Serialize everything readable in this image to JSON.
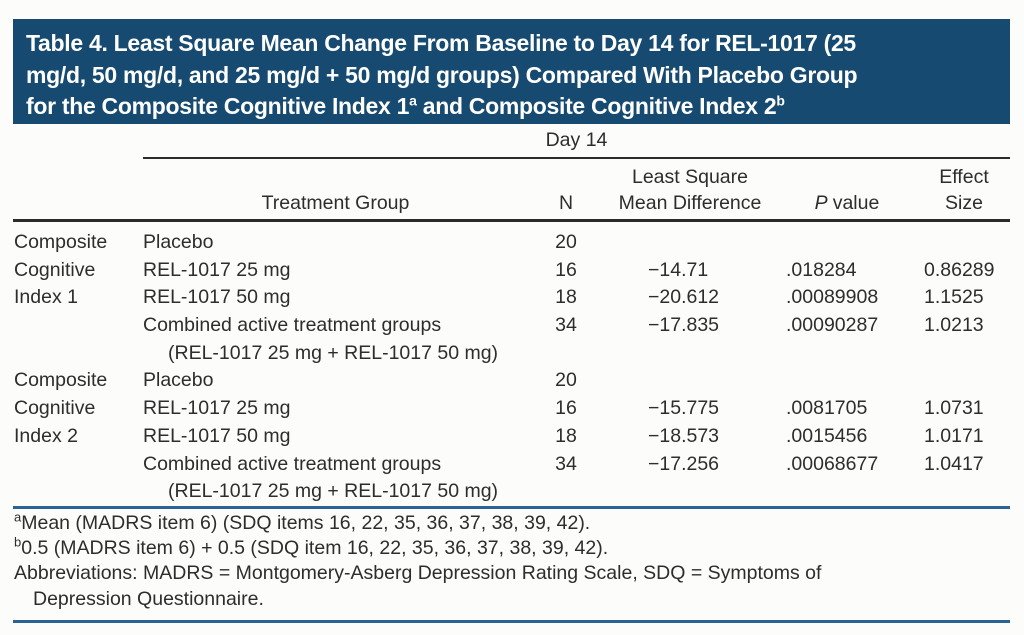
{
  "colors": {
    "banner_bg": "#164a70",
    "banner_text": "#ffffff",
    "rule_dark": "#2b2b2b",
    "rule_blue": "#2c6396",
    "text": "#2d2d2d",
    "page_bg": "#fcfcfa"
  },
  "banner": {
    "line1": "Table 4. Least Square Mean Change From Baseline to Day 14 for REL-1017 (25",
    "line2": "mg/d, 50 mg/d, and 25 mg/d + 50 mg/d groups) Compared With Placebo Group",
    "line3_part1": "for the Composite Cognitive Index 1",
    "line3_sup1": "a",
    "line3_part2": " and Composite Cognitive Index 2",
    "line3_sup2": "b"
  },
  "table": {
    "spanner": "Day 14",
    "header": {
      "treatment_group": "Treatment Group",
      "n": "N",
      "least_square_line1": "Least Square",
      "least_square_line2": "Mean Difference",
      "p_label": "P",
      "p_label_rest": "value",
      "effect_line1": "Effect",
      "effect_line2": "Size"
    },
    "rows": [
      {
        "label": "Composite",
        "treatment": "Placebo",
        "n": "20",
        "lsmd": "",
        "p": "",
        "effect": ""
      },
      {
        "label": "Cognitive",
        "treatment": "REL-1017 25 mg",
        "n": "16",
        "lsmd": "−14.71",
        "p": ".018284",
        "effect": "0.86289"
      },
      {
        "label": "Index 1",
        "treatment": "REL-1017 50 mg",
        "n": "18",
        "lsmd": "−20.612",
        "p": ".00089908",
        "effect": "1.1525"
      },
      {
        "label": "",
        "treatment": "Combined active treatment groups",
        "n": "34",
        "lsmd": "−17.835",
        "p": ".00090287",
        "effect": "1.0213"
      },
      {
        "label": "",
        "treatment": "(REL-1017 25 mg + REL-1017 50 mg)",
        "n": "",
        "lsmd": "",
        "p": "",
        "effect": ""
      },
      {
        "label": "Composite",
        "treatment": "Placebo",
        "n": "20",
        "lsmd": "",
        "p": "",
        "effect": ""
      },
      {
        "label": "Cognitive",
        "treatment": "REL-1017 25 mg",
        "n": "16",
        "lsmd": "−15.775",
        "p": ".0081705",
        "effect": "1.0731"
      },
      {
        "label": "Index 2",
        "treatment": "REL-1017 50 mg",
        "n": "18",
        "lsmd": "−18.573",
        "p": ".0015456",
        "effect": "1.0171"
      },
      {
        "label": "",
        "treatment": "Combined active treatment groups",
        "n": "34",
        "lsmd": "−17.256",
        "p": ".00068677",
        "effect": "1.0417"
      },
      {
        "label": "",
        "treatment": "(REL-1017 25 mg + REL-1017 50 mg)",
        "n": "",
        "lsmd": "",
        "p": "",
        "effect": ""
      }
    ]
  },
  "footnotes": {
    "a_sup": "a",
    "a_text": "Mean (MADRS item 6) (SDQ items 16, 22, 35, 36, 37, 38, 39, 42).",
    "b_sup": "b",
    "b_text": "0.5 (MADRS item 6) + 0.5 (SDQ item 16, 22, 35, 36, 37, 38, 39, 42).",
    "abbr_line1": "Abbreviations: MADRS = Montgomery-Asberg Depression Rating Scale, SDQ = Symptoms of",
    "abbr_line2": "Depression Questionnaire."
  }
}
